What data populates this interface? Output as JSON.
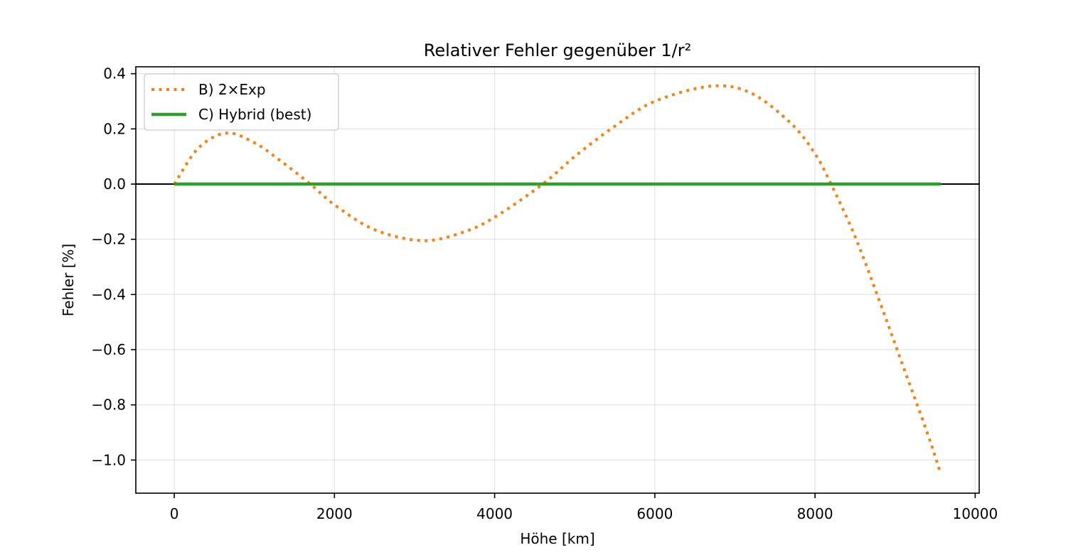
{
  "chart_data": {
    "type": "line",
    "title": "Relativer Fehler gegenüber 1/r²",
    "xlabel": "Höhe [km]",
    "ylabel": "Fehler [%]",
    "xlim": [
      -480,
      10050
    ],
    "ylim": [
      -1.12,
      0.425
    ],
    "xticks": [
      0,
      2000,
      4000,
      6000,
      8000,
      10000
    ],
    "xtick_labels": [
      "0",
      "2000",
      "4000",
      "6000",
      "8000",
      "10000"
    ],
    "yticks": [
      0.4,
      0.2,
      0.0,
      -0.2,
      -0.4,
      -0.6,
      -0.8,
      -1.0
    ],
    "ytick_labels": [
      "0.4",
      "0.2",
      "0.0",
      "−0.2",
      "−0.4",
      "−0.6",
      "−0.8",
      "−1.0"
    ],
    "grid": true,
    "zero_line": true,
    "legend_position": "upper left",
    "series": [
      {
        "name": "B) 2×Exp",
        "color": "#ff7f0e",
        "style": "dotted",
        "x": [
          0,
          300,
          650,
          1000,
          1300,
          1700,
          2000,
          2500,
          3100,
          3600,
          4000,
          4600,
          5000,
          5500,
          6000,
          6700,
          7200,
          7700,
          8000,
          8200,
          8500,
          8800,
          9100,
          9400,
          9570
        ],
        "y": [
          0.0,
          0.13,
          0.185,
          0.15,
          0.09,
          0.0,
          -0.075,
          -0.165,
          -0.205,
          -0.175,
          -0.12,
          0.0,
          0.1,
          0.21,
          0.3,
          0.355,
          0.33,
          0.22,
          0.11,
          0.0,
          -0.19,
          -0.42,
          -0.66,
          -0.9,
          -1.05
        ]
      },
      {
        "name": "C) Hybrid (best)",
        "color": "#2ca02c",
        "style": "solid",
        "x": [
          0,
          9570
        ],
        "y": [
          0.0,
          0.0
        ]
      }
    ]
  }
}
